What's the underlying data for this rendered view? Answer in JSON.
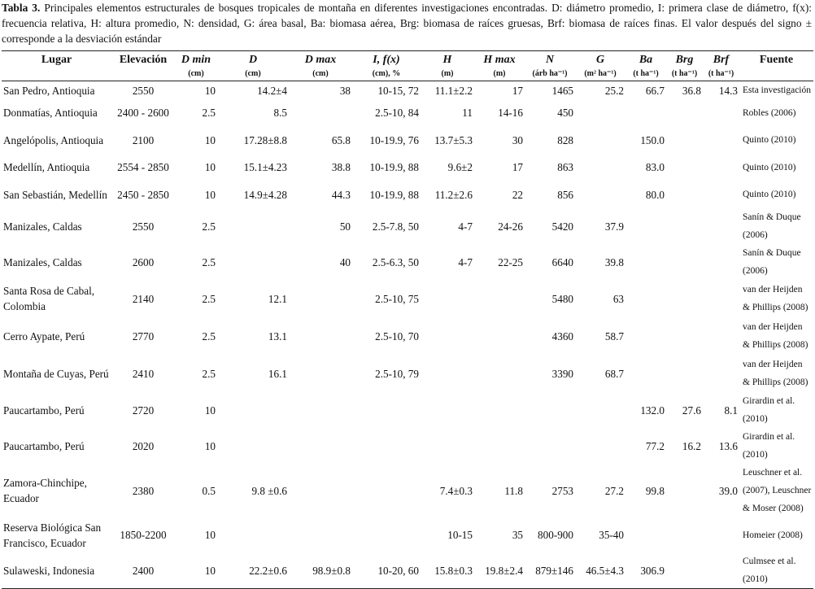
{
  "caption": {
    "table_label": "Tabla 3.",
    "text": "Principales elementos estructurales de bosques tropicales de montaña en diferentes investigaciones encontradas. D: diámetro promedio, I: primera clase de diámetro, f(x): frecuencia relativa, H: altura promedio, N: densidad, G: área basal, Ba: biomasa aérea, Brg: biomasa de raíces gruesas, Brf: biomasa de raíces finas. El valor después del signo ± corresponde a la desviación estándar"
  },
  "headers": [
    {
      "label": "Lugar",
      "unit": ""
    },
    {
      "label": "Elevación",
      "unit": ""
    },
    {
      "label": "D min",
      "unit": "(cm)"
    },
    {
      "label": "D",
      "unit": "(cm)"
    },
    {
      "label": "D max",
      "unit": "(cm)"
    },
    {
      "label": "I, f(x)",
      "unit": "(cm), %"
    },
    {
      "label": "H",
      "unit": "(m)"
    },
    {
      "label": "H max",
      "unit": "(m)"
    },
    {
      "label": "N",
      "unit": "(árb ha⁻¹)"
    },
    {
      "label": "G",
      "unit": "(m² ha⁻¹)"
    },
    {
      "label": "Ba",
      "unit": "(t ha⁻¹)"
    },
    {
      "label": "Brg",
      "unit": "(t ha⁻¹)"
    },
    {
      "label": "Brf",
      "unit": "(t ha⁻¹)"
    },
    {
      "label": "Fuente",
      "unit": ""
    }
  ],
  "rows": [
    [
      "San Pedro, Antioquia",
      "2550",
      "10",
      "14.2±4",
      "38",
      "10-15, 72",
      "11.1±2.2",
      "17",
      "1465",
      "25.2",
      "66.7",
      "36.8",
      "14.3",
      "Esta investigación"
    ],
    [
      "Donmatías, Antioquia",
      "2400 - 2600",
      "2.5",
      "8.5",
      "",
      "2.5-10, 84",
      "11",
      "14-16",
      "450",
      "",
      "",
      "",
      "",
      "Robles (2006)"
    ],
    [
      "Angelópolis, Antioquia",
      "2100",
      "10",
      "17.28±8.8",
      "65.8",
      "10-19.9, 76",
      "13.7±5.3",
      "30",
      "828",
      "",
      "150.0",
      "",
      "",
      "Quinto (2010)"
    ],
    [
      "Medellín, Antioquia",
      "2554 - 2850",
      "10",
      "15.1±4.23",
      "38.8",
      "10-19.9, 88",
      "9.6±2",
      "17",
      "863",
      "",
      "83.0",
      "",
      "",
      "Quinto (2010)"
    ],
    [
      "San Sebastián, Medellín",
      "2450 - 2850",
      "10",
      "14.9±4.28",
      "44.3",
      "10-19.9, 88",
      "11.2±2.6",
      "22",
      "856",
      "",
      "80.0",
      "",
      "",
      "Quinto (2010)"
    ],
    [
      "Manizales, Caldas",
      "2550",
      "2.5",
      "",
      "50",
      "2.5-7.8, 50",
      "4-7",
      "24-26",
      "5420",
      "37.9",
      "",
      "",
      "",
      "Sanín & Duque (2006)"
    ],
    [
      "Manizales, Caldas",
      "2600",
      "2.5",
      "",
      "40",
      "2.5-6.3, 50",
      "4-7",
      "22-25",
      "6640",
      "39.8",
      "",
      "",
      "",
      "Sanín & Duque (2006)"
    ],
    [
      "Santa Rosa de Cabal, Colombia",
      "2140",
      "2.5",
      "12.1",
      "",
      "2.5-10, 75",
      "",
      "",
      "5480",
      "63",
      "",
      "",
      "",
      "van der Heijden & Phillips (2008)"
    ],
    [
      "Cerro Aypate, Perú",
      "2770",
      "2.5",
      "13.1",
      "",
      "2.5-10, 70",
      "",
      "",
      "4360",
      "58.7",
      "",
      "",
      "",
      "van der Heijden & Phillips (2008)"
    ],
    [
      "Montaña de Cuyas, Perú",
      "2410",
      "2.5",
      "16.1",
      "",
      "2.5-10, 79",
      "",
      "",
      "3390",
      "68.7",
      "",
      "",
      "",
      "van der Heijden & Phillips (2008)"
    ],
    [
      "Paucartambo, Perú",
      "2720",
      "10",
      "",
      "",
      "",
      "",
      "",
      "",
      "",
      "132.0",
      "27.6",
      "8.1",
      "Girardin et al. (2010)"
    ],
    [
      "Paucartambo, Perú",
      "2020",
      "10",
      "",
      "",
      "",
      "",
      "",
      "",
      "",
      "77.2",
      "16.2",
      "13.6",
      "Girardin et al. (2010)"
    ],
    [
      "Zamora-Chinchipe, Ecuador",
      "2380",
      "0.5",
      "9.8 ±0.6",
      "",
      "",
      "7.4±0.3",
      "11.8",
      "2753",
      "27.2",
      "99.8",
      "",
      "39.0",
      "Leuschner et al. (2007), Leuschner & Moser (2008)"
    ],
    [
      "Reserva Biológica San Francisco, Ecuador",
      "1850-2200",
      "10",
      "",
      "",
      "",
      "10-15",
      "35",
      "800-900",
      "35-40",
      "",
      "",
      "",
      "Homeier (2008)"
    ],
    [
      "Sulaweski, Indonesia",
      "2400",
      "10",
      "22.2±0.6",
      "98.9±0.8",
      "10-20, 60",
      "15.8±0.3",
      "19.8±2.4",
      "879±146",
      "46.5±4.3",
      "306.9",
      "",
      "",
      "Culmsee et al. (2010)"
    ]
  ]
}
